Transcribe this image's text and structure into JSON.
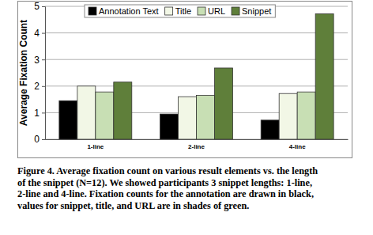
{
  "chart_data": {
    "type": "bar",
    "y_label": "Average Fixation Count",
    "categories": [
      "1-line",
      "2-line",
      "4-line"
    ],
    "series": [
      {
        "name": "Annotation Text",
        "color": "#000000",
        "values": [
          1.45,
          0.95,
          0.72
        ]
      },
      {
        "name": "Title",
        "color": "#f2f7e6",
        "values": [
          2.0,
          1.6,
          1.72
        ]
      },
      {
        "name": "URL",
        "color": "#c8dfb4",
        "values": [
          1.78,
          1.65,
          1.78
        ]
      },
      {
        "name": "Snippet",
        "color": "#5f7f3a",
        "values": [
          2.15,
          2.68,
          4.72
        ]
      }
    ],
    "ylim": [
      0,
      5
    ],
    "yticks": [
      0,
      1,
      2,
      3,
      4,
      5
    ],
    "grid": true,
    "legend": "top",
    "caption": [
      "Figure 4. Average fixation count on various result elements vs. the length",
      "of the snippet (N=12). We showed participants 3 snippet lengths: 1-line,",
      "2-line and 4-line. Fixation counts for the annotation are drawn in black,",
      "values for snippet, title, and URL are in shades of green."
    ]
  }
}
